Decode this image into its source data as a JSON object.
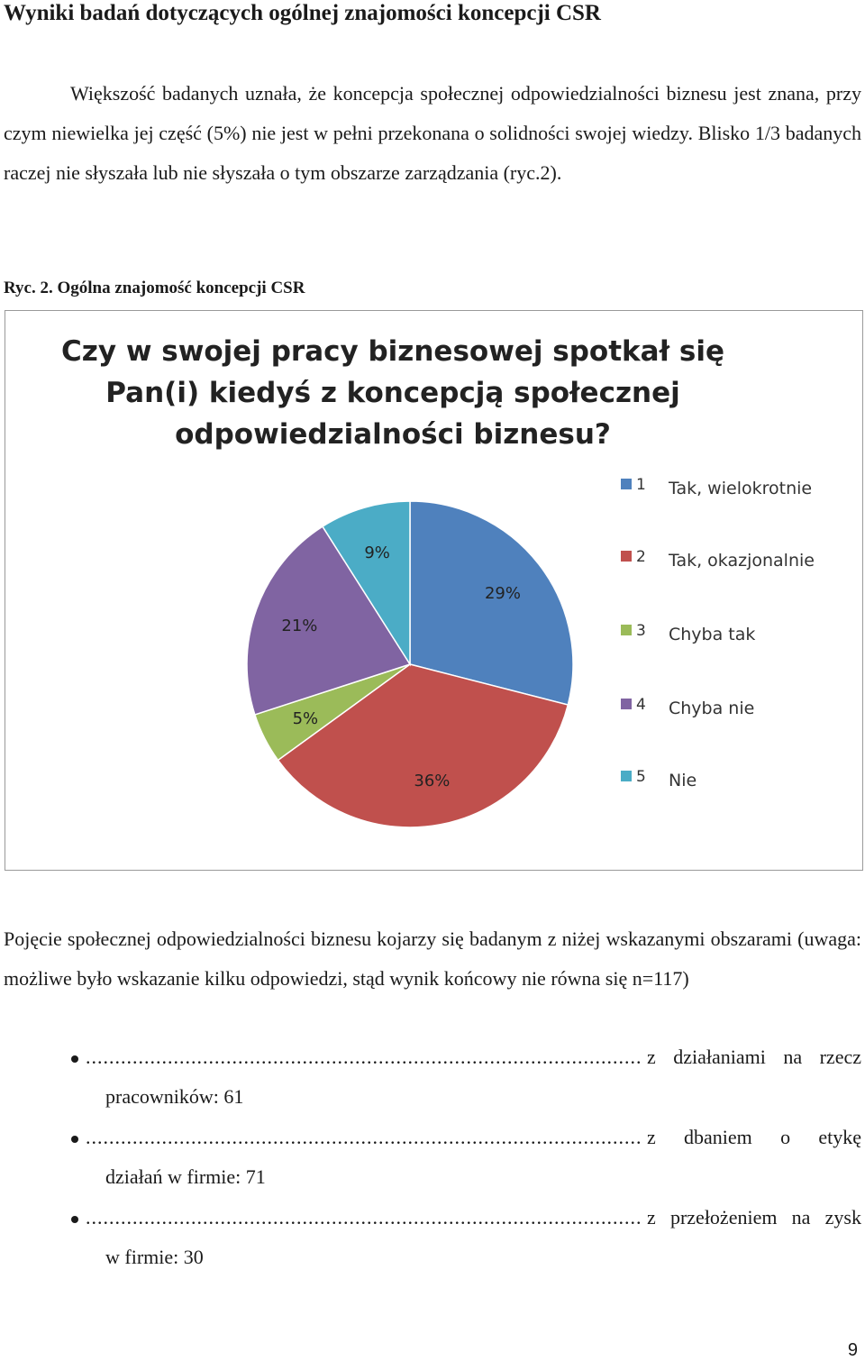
{
  "heading": "Wyniki badań dotyczących ogólnej znajomości koncepcji CSR",
  "paragraph1": "Większość badanych uznała, że koncepcja społecznej odpowiedzialności biznesu jest znana, przy czym niewielka jej część (5%) nie jest w pełni przekonana o solidności swojej wiedzy. Blisko 1/3 badanych raczej nie słyszała lub nie słyszała o tym obszarze zarządzania (ryc.2).",
  "caption": "Ryc. 2. Ogólna znajomość koncepcji CSR",
  "chart_data": {
    "type": "pie",
    "title": "Czy w swojej pracy biznesowej spotkał się Pan(i) kiedyś z koncepcją społecznej odpowiedzialności biznesu?",
    "slices": [
      {
        "id": "1",
        "label": "Tak, wielokrotnie",
        "value": 29,
        "display": "29%",
        "color": "#4f81bd"
      },
      {
        "id": "2",
        "label": "Tak, okazjonalnie",
        "value": 36,
        "display": "36%",
        "color": "#c0504d"
      },
      {
        "id": "3",
        "label": "Chyba tak",
        "value": 5,
        "display": "5%",
        "color": "#9bbb59"
      },
      {
        "id": "4",
        "label": "Chyba nie",
        "value": 21,
        "display": "21%",
        "color": "#8064a2"
      },
      {
        "id": "5",
        "label": "Nie",
        "value": 9,
        "display": "9%",
        "color": "#4bacc6"
      }
    ],
    "legend_position": "right"
  },
  "paragraph2": "Pojęcie społecznej odpowiedzialności biznesu kojarzy się badanym z niżej wskazanymi obszarami (uwaga: możliwe było wskazanie kilku odpowiedzi, stąd wynik końcowy nie równa się n=117)",
  "bullets": [
    {
      "line1_words": [
        "z",
        "działaniami",
        "na",
        "rzecz"
      ],
      "line2": "pracowników: 61",
      "line1_width": 238
    },
    {
      "line1_words": [
        "z",
        "dbaniem",
        "o",
        "etykę"
      ],
      "line2": "działań w firmie: 71",
      "line1_width": 238
    },
    {
      "line1_words": [
        "z",
        "przełożeniem",
        "na",
        "zysk"
      ],
      "line2": "w firmie: 30",
      "line1_width": 238
    }
  ],
  "page_number": "9"
}
